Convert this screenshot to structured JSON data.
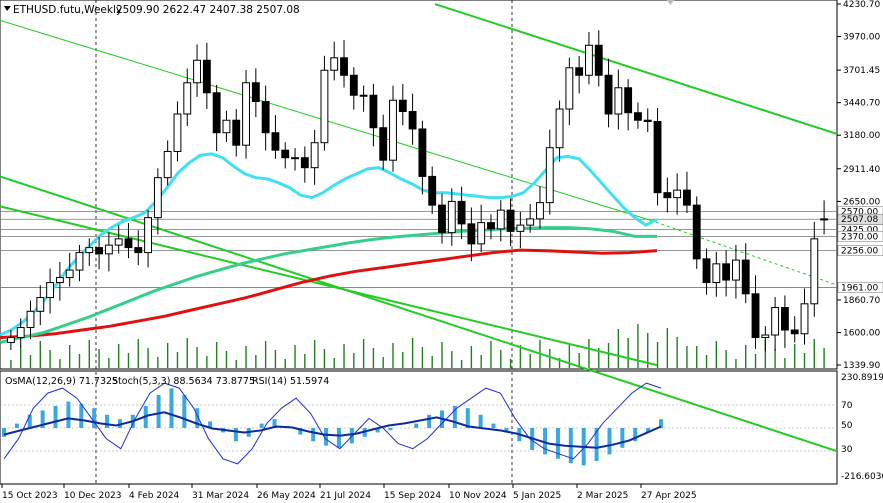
{
  "header": {
    "symbol": "ETHUSD.futu,Weekly",
    "ohlc": "2509.90 2622.47 2407.38 2507.08"
  },
  "price_axis": {
    "labels": [
      "4230.70",
      "3970.00",
      "3701.45",
      "3440.70",
      "3180.00",
      "2911.40",
      "2650.00",
      "1860.70",
      "1600.00",
      "1339.90"
    ],
    "levels": [
      "2570.00",
      "2507.08",
      "2425.00",
      "2370.00",
      "2256.00",
      "1961.00"
    ]
  },
  "time_axis": {
    "labels": [
      "15 Oct 2023",
      "10 Dec 2023",
      "4 Feb 2024",
      "31 Mar 2024",
      "26 May 2024",
      "21 Jul 2024",
      "15 Sep 2024",
      "10 Nov 2024",
      "5 Jan 2025",
      "2 Mar 2025",
      "27 Apr 2025"
    ]
  },
  "osc_panel": {
    "header_osma": "OsMA(12,26,9) 71.7325",
    "header_stoch": "Stoch(5,3,3) 88.5634 73.8775",
    "header_rsi": "RSI(14) 51.5974",
    "axis_labels": [
      "230.8919",
      "70",
      "50",
      "30",
      "-216.6030"
    ]
  },
  "colors": {
    "bull_candle": "#ffffff",
    "bear_candle": "#000000",
    "ma_fast": "#3ee0f2",
    "ma_mid": "#36cf8a",
    "ma_slow": "#e01010",
    "channel": "#22cc22",
    "osma": "#38a8e0",
    "stoch_main": "#2030d8",
    "rsi": "#0b2a9e",
    "volume": "#208020"
  },
  "chart_data": {
    "type": "candlestick",
    "symbol": "ETHUSD.futu",
    "timeframe": "Weekly",
    "current": {
      "open": 2509.9,
      "high": 2622.47,
      "low": 2407.38,
      "close": 2507.08
    },
    "ylim": [
      1339.9,
      4230.7
    ],
    "horizontal_levels": [
      2570.0,
      2507.08,
      2425.0,
      2370.0,
      2256.0,
      1961.0
    ],
    "closes": [
      1560,
      1640,
      1770,
      1880,
      2000,
      2040,
      2100,
      2240,
      2280,
      2230,
      2300,
      2350,
      2280,
      2240,
      2520,
      2840,
      3050,
      3350,
      3600,
      3780,
      3520,
      3200,
      3300,
      3100,
      3600,
      3450,
      3200,
      3060,
      3000,
      3000,
      2920,
      3120,
      3700,
      3800,
      3660,
      3500,
      3500,
      3240,
      2980,
      3460,
      3370,
      3230,
      2850,
      2620,
      2400,
      2650,
      2470,
      2310,
      2480,
      2430,
      2580,
      2410,
      2460,
      2510,
      2640,
      3080,
      3390,
      3720,
      3660,
      3900,
      3660,
      3350,
      3560,
      3360,
      3300,
      3290,
      2720,
      2680,
      2740,
      2620,
      2190,
      2000,
      2150,
      2020,
      2180,
      1910,
      1560,
      1580,
      1800,
      1620,
      1590,
      1830,
      2350,
      2507.08
    ],
    "ma_fast": {
      "name": "",
      "values": [
        1580,
        1620,
        1680,
        1760,
        1860,
        1980,
        2100,
        2200,
        2290,
        2380,
        2440,
        2490,
        2520,
        2560,
        2650,
        2760,
        2880,
        2960,
        3020,
        3030,
        3000,
        2930,
        2870,
        2840,
        2830,
        2800,
        2760,
        2700,
        2680,
        2720,
        2780,
        2830,
        2870,
        2910,
        2920,
        2880,
        2830,
        2790,
        2740,
        2720,
        2720,
        2710,
        2700,
        2690,
        2680,
        2680,
        2690,
        2720,
        2800,
        2900,
        3000,
        3010,
        2990,
        2900,
        2800,
        2700,
        2600,
        2520,
        2460,
        2507
      ]
    },
    "ma_mid": {
      "name": "",
      "values": [
        1520,
        1560,
        1600,
        1660,
        1720,
        1790,
        1860,
        1930,
        1990,
        2050,
        2100,
        2150,
        2190,
        2230,
        2260,
        2290,
        2320,
        2345,
        2365,
        2380,
        2395,
        2410,
        2420,
        2430,
        2435,
        2440,
        2440,
        2430,
        2410,
        2370,
        2370
      ]
    },
    "ma_slow": {
      "name": "",
      "values": [
        1560,
        1570,
        1590,
        1620,
        1650,
        1690,
        1730,
        1780,
        1830,
        1880,
        1940,
        2000,
        2050,
        2090,
        2120,
        2150,
        2180,
        2210,
        2240,
        2260,
        2255,
        2245,
        2235,
        2240,
        2256
      ]
    },
    "osma_values": [
      -40,
      20,
      60,
      80,
      100,
      120,
      110,
      90,
      60,
      40,
      60,
      100,
      150,
      180,
      150,
      90,
      30,
      -20,
      -60,
      -40,
      20,
      40,
      10,
      -30,
      -60,
      -80,
      -90,
      -70,
      -40,
      -20,
      -10,
      0,
      20,
      60,
      80,
      100,
      90,
      60,
      20,
      -20,
      -60,
      -100,
      -120,
      -140,
      -160,
      -170,
      -150,
      -120,
      -90,
      -60,
      -20,
      40
    ],
    "stoch_main": [
      20,
      40,
      70,
      85,
      90,
      80,
      60,
      40,
      30,
      60,
      85,
      95,
      90,
      70,
      40,
      20,
      15,
      30,
      55,
      70,
      80,
      65,
      40,
      30,
      45,
      60,
      50,
      35,
      30,
      40,
      55,
      70,
      80,
      90,
      85,
      60,
      40,
      30,
      25,
      20,
      35,
      55,
      70,
      85,
      95,
      90
    ],
    "rsi_values": [
      44,
      48,
      52,
      56,
      60,
      58,
      55,
      53,
      57,
      63,
      66,
      61,
      55,
      50,
      48,
      46,
      48,
      52,
      51,
      47,
      44,
      43,
      45,
      49,
      53,
      55,
      58,
      61,
      57,
      52,
      50,
      48,
      45,
      40,
      35,
      33,
      32,
      31,
      34,
      38,
      45,
      52
    ]
  }
}
